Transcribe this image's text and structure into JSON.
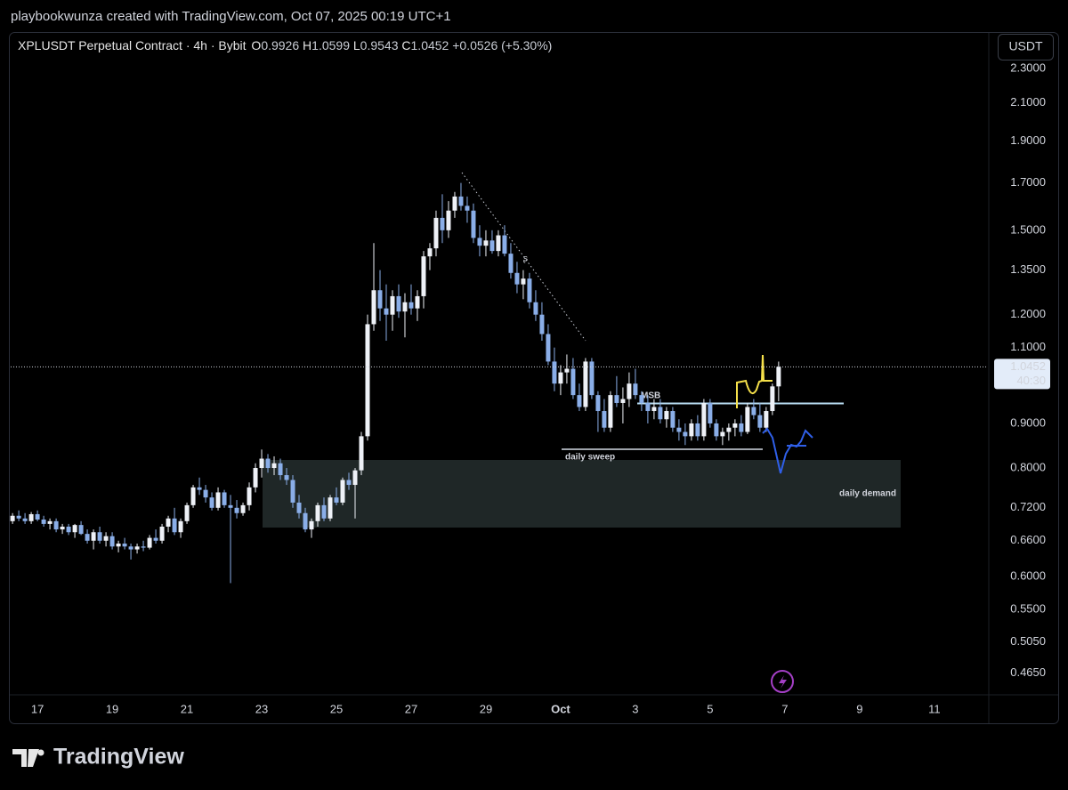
{
  "header": {
    "attribution": "playbookwunza created with TradingView.com, Oct 07, 2025 00:19 UTC+1"
  },
  "footer": {
    "brand": "TradingView"
  },
  "chart_data": {
    "type": "candlestick",
    "title": "XPLUSDT Perpetual Contract · 4h · Bybit",
    "legend": {
      "open_label": "O",
      "open": 0.9926,
      "high_label": "H",
      "high": 1.0599,
      "low_label": "L",
      "low": 0.9543,
      "close_label": "C",
      "close": 1.0452,
      "change": "+0.0526 (+5.30%)"
    },
    "currency": "USDT",
    "last_price": 1.0452,
    "countdown": "40:30",
    "annotations": {
      "msb": "MSB",
      "sweep": "daily sweep",
      "demand": "daily demand"
    },
    "up_color": "#eef1f7",
    "down_color": "#8aaee8",
    "log": true,
    "ylim": [
      0.435,
      2.51
    ],
    "yticks": [
      {
        "value": 2.3,
        "label": "2.3000"
      },
      {
        "value": 2.1,
        "label": "2.1000"
      },
      {
        "value": 1.9,
        "label": "1.9000"
      },
      {
        "value": 1.7,
        "label": "1.7000"
      },
      {
        "value": 1.5,
        "label": "1.5000"
      },
      {
        "value": 1.35,
        "label": "1.3500"
      },
      {
        "value": 1.2,
        "label": "1.2000"
      },
      {
        "value": 1.1,
        "label": "1.1000"
      },
      {
        "value": 0.9,
        "label": "0.9000"
      },
      {
        "value": 0.8,
        "label": "0.8000"
      },
      {
        "value": 0.72,
        "label": "0.7200"
      },
      {
        "value": 0.66,
        "label": "0.6600"
      },
      {
        "value": 0.6,
        "label": "0.6000"
      },
      {
        "value": 0.55,
        "label": "0.5500"
      },
      {
        "value": 0.505,
        "label": "0.5050"
      },
      {
        "value": 0.465,
        "label": "0.4650"
      }
    ],
    "xlim": [
      -0.3,
      156.6
    ],
    "xticks": [
      {
        "value": 4,
        "label": "17"
      },
      {
        "value": 16,
        "label": "19"
      },
      {
        "value": 28,
        "label": "21"
      },
      {
        "value": 40,
        "label": "23"
      },
      {
        "value": 52,
        "label": "25"
      },
      {
        "value": 64,
        "label": "27"
      },
      {
        "value": 76,
        "label": "29"
      },
      {
        "value": 88,
        "label": "Oct"
      },
      {
        "value": 100,
        "label": "3"
      },
      {
        "value": 112,
        "label": "5"
      },
      {
        "value": 124,
        "label": "7"
      },
      {
        "value": 136,
        "label": "9"
      },
      {
        "value": 148,
        "label": "11"
      }
    ],
    "ohlc": [
      [
        0.695,
        0.71,
        0.69,
        0.705
      ],
      [
        0.705,
        0.715,
        0.695,
        0.7
      ],
      [
        0.7,
        0.71,
        0.69,
        0.695
      ],
      [
        0.695,
        0.712,
        0.69,
        0.708
      ],
      [
        0.708,
        0.715,
        0.695,
        0.698
      ],
      [
        0.698,
        0.705,
        0.685,
        0.69
      ],
      [
        0.69,
        0.7,
        0.68,
        0.695
      ],
      [
        0.695,
        0.7,
        0.675,
        0.68
      ],
      [
        0.68,
        0.69,
        0.672,
        0.685
      ],
      [
        0.685,
        0.69,
        0.67,
        0.675
      ],
      [
        0.675,
        0.69,
        0.665,
        0.688
      ],
      [
        0.688,
        0.695,
        0.67,
        0.672
      ],
      [
        0.672,
        0.68,
        0.655,
        0.66
      ],
      [
        0.66,
        0.68,
        0.645,
        0.675
      ],
      [
        0.675,
        0.685,
        0.655,
        0.66
      ],
      [
        0.66,
        0.675,
        0.65,
        0.668
      ],
      [
        0.668,
        0.675,
        0.645,
        0.65
      ],
      [
        0.65,
        0.66,
        0.64,
        0.655
      ],
      [
        0.655,
        0.665,
        0.645,
        0.65
      ],
      [
        0.65,
        0.655,
        0.628,
        0.645
      ],
      [
        0.645,
        0.655,
        0.638,
        0.65
      ],
      [
        0.65,
        0.66,
        0.642,
        0.648
      ],
      [
        0.648,
        0.67,
        0.645,
        0.665
      ],
      [
        0.665,
        0.68,
        0.655,
        0.66
      ],
      [
        0.66,
        0.69,
        0.655,
        0.685
      ],
      [
        0.685,
        0.705,
        0.675,
        0.7
      ],
      [
        0.7,
        0.72,
        0.67,
        0.675
      ],
      [
        0.675,
        0.7,
        0.665,
        0.695
      ],
      [
        0.695,
        0.73,
        0.69,
        0.725
      ],
      [
        0.725,
        0.765,
        0.72,
        0.76
      ],
      [
        0.76,
        0.78,
        0.745,
        0.755
      ],
      [
        0.755,
        0.765,
        0.73,
        0.74
      ],
      [
        0.74,
        0.75,
        0.715,
        0.72
      ],
      [
        0.72,
        0.76,
        0.715,
        0.75
      ],
      [
        0.75,
        0.755,
        0.72,
        0.725
      ],
      [
        0.725,
        0.745,
        0.59,
        0.72
      ],
      [
        0.72,
        0.735,
        0.7,
        0.71
      ],
      [
        0.71,
        0.73,
        0.705,
        0.725
      ],
      [
        0.725,
        0.77,
        0.715,
        0.76
      ],
      [
        0.76,
        0.81,
        0.75,
        0.8
      ],
      [
        0.8,
        0.84,
        0.78,
        0.82
      ],
      [
        0.82,
        0.83,
        0.79,
        0.8
      ],
      [
        0.8,
        0.825,
        0.785,
        0.81
      ],
      [
        0.81,
        0.82,
        0.775,
        0.785
      ],
      [
        0.785,
        0.8,
        0.765,
        0.775
      ],
      [
        0.775,
        0.785,
        0.72,
        0.73
      ],
      [
        0.73,
        0.745,
        0.7,
        0.71
      ],
      [
        0.71,
        0.72,
        0.675,
        0.68
      ],
      [
        0.68,
        0.7,
        0.665,
        0.695
      ],
      [
        0.695,
        0.73,
        0.685,
        0.725
      ],
      [
        0.725,
        0.74,
        0.695,
        0.7
      ],
      [
        0.7,
        0.745,
        0.695,
        0.74
      ],
      [
        0.74,
        0.76,
        0.725,
        0.73
      ],
      [
        0.73,
        0.78,
        0.725,
        0.775
      ],
      [
        0.775,
        0.79,
        0.755,
        0.765
      ],
      [
        0.765,
        0.8,
        0.7,
        0.795
      ],
      [
        0.795,
        0.88,
        0.785,
        0.87
      ],
      [
        0.87,
        1.2,
        0.86,
        1.17
      ],
      [
        1.17,
        1.45,
        1.15,
        1.28
      ],
      [
        1.28,
        1.35,
        1.18,
        1.22
      ],
      [
        1.22,
        1.3,
        1.12,
        1.2
      ],
      [
        1.2,
        1.28,
        1.15,
        1.26
      ],
      [
        1.26,
        1.3,
        1.19,
        1.21
      ],
      [
        1.21,
        1.27,
        1.13,
        1.24
      ],
      [
        1.24,
        1.3,
        1.2,
        1.22
      ],
      [
        1.22,
        1.28,
        1.18,
        1.26
      ],
      [
        1.26,
        1.42,
        1.22,
        1.4
      ],
      [
        1.4,
        1.45,
        1.35,
        1.43
      ],
      [
        1.43,
        1.58,
        1.4,
        1.55
      ],
      [
        1.55,
        1.65,
        1.45,
        1.5
      ],
      [
        1.5,
        1.62,
        1.47,
        1.58
      ],
      [
        1.58,
        1.66,
        1.55,
        1.64
      ],
      [
        1.64,
        1.7,
        1.58,
        1.6
      ],
      [
        1.6,
        1.64,
        1.53,
        1.58
      ],
      [
        1.58,
        1.61,
        1.45,
        1.47
      ],
      [
        1.47,
        1.52,
        1.4,
        1.44
      ],
      [
        1.44,
        1.5,
        1.4,
        1.46
      ],
      [
        1.46,
        1.5,
        1.41,
        1.42
      ],
      [
        1.42,
        1.5,
        1.4,
        1.48
      ],
      [
        1.48,
        1.52,
        1.4,
        1.41
      ],
      [
        1.41,
        1.45,
        1.32,
        1.34
      ],
      [
        1.34,
        1.38,
        1.27,
        1.3
      ],
      [
        1.3,
        1.35,
        1.25,
        1.32
      ],
      [
        1.32,
        1.34,
        1.22,
        1.24
      ],
      [
        1.24,
        1.28,
        1.18,
        1.2
      ],
      [
        1.2,
        1.24,
        1.12,
        1.14
      ],
      [
        1.14,
        1.17,
        1.05,
        1.06
      ],
      [
        1.06,
        1.1,
        0.98,
        1.0
      ],
      [
        1.0,
        1.05,
        0.97,
        1.03
      ],
      [
        1.03,
        1.08,
        1.0,
        1.04
      ],
      [
        1.04,
        1.07,
        0.96,
        0.97
      ],
      [
        0.97,
        1.0,
        0.93,
        0.94
      ],
      [
        0.94,
        1.07,
        0.93,
        1.06
      ],
      [
        1.06,
        1.07,
        0.96,
        0.97
      ],
      [
        0.97,
        0.98,
        0.88,
        0.93
      ],
      [
        0.93,
        0.96,
        0.88,
        0.89
      ],
      [
        0.89,
        0.98,
        0.88,
        0.97
      ],
      [
        0.97,
        1.02,
        0.94,
        0.95
      ],
      [
        0.95,
        0.99,
        0.9,
        0.96
      ],
      [
        0.96,
        1.03,
        0.94,
        1.0
      ],
      [
        1.0,
        1.04,
        0.96,
        0.97
      ],
      [
        0.97,
        0.98,
        0.93,
        0.95
      ],
      [
        0.95,
        0.97,
        0.9,
        0.93
      ],
      [
        0.93,
        0.96,
        0.91,
        0.94
      ],
      [
        0.94,
        0.96,
        0.9,
        0.91
      ],
      [
        0.91,
        0.94,
        0.89,
        0.93
      ],
      [
        0.93,
        0.94,
        0.88,
        0.89
      ],
      [
        0.89,
        0.91,
        0.86,
        0.88
      ],
      [
        0.88,
        0.9,
        0.85,
        0.87
      ],
      [
        0.87,
        0.91,
        0.86,
        0.9
      ],
      [
        0.9,
        0.92,
        0.86,
        0.87
      ],
      [
        0.87,
        0.96,
        0.86,
        0.95
      ],
      [
        0.95,
        0.96,
        0.89,
        0.9
      ],
      [
        0.9,
        0.91,
        0.86,
        0.87
      ],
      [
        0.87,
        0.89,
        0.85,
        0.88
      ],
      [
        0.88,
        0.9,
        0.86,
        0.89
      ],
      [
        0.89,
        0.91,
        0.87,
        0.9
      ],
      [
        0.9,
        0.92,
        0.87,
        0.88
      ],
      [
        0.88,
        0.95,
        0.875,
        0.94
      ],
      [
        0.94,
        0.96,
        0.91,
        0.92
      ],
      [
        0.92,
        0.95,
        0.88,
        0.89
      ],
      [
        0.89,
        0.94,
        0.88,
        0.93
      ],
      [
        0.93,
        1.0,
        0.92,
        0.9926
      ],
      [
        0.9926,
        1.0599,
        0.9543,
        1.0452
      ]
    ]
  }
}
